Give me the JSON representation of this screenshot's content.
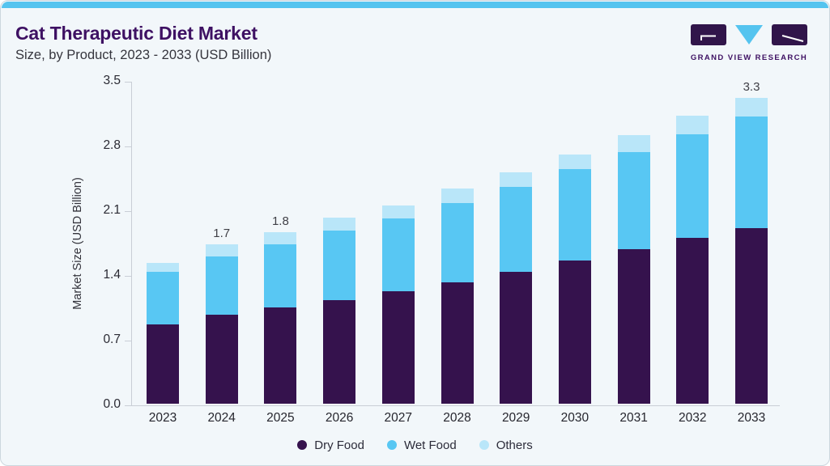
{
  "header": {
    "title": "Cat Therapeutic Diet Market",
    "subtitle": "Size, by Product, 2023 - 2033 (USD Billion)"
  },
  "logo": {
    "text": "GRAND VIEW RESEARCH"
  },
  "colors": {
    "accent_strip": "#55c4ef",
    "title": "#3e1163",
    "axis": "#c9ced6",
    "dry_food": "#35124d",
    "wet_food": "#58c7f3",
    "others": "#b9e6f9",
    "background": "#f2f7fa",
    "logo_purple": "#31154a",
    "logo_blue": "#55c4ef"
  },
  "chart_data": {
    "type": "bar",
    "stacked": true,
    "title": "Cat Therapeutic Diet Market Size, by Product, 2023 - 2033 (USD Billion)",
    "xlabel": "",
    "ylabel": "Market Size (USD Billion)",
    "ylim": [
      0,
      3.5
    ],
    "yticks": [
      "0.0",
      "0.7",
      "1.4",
      "2.1",
      "2.8",
      "3.5"
    ],
    "grid": false,
    "legend_position": "bottom",
    "categories": [
      "2023",
      "2024",
      "2025",
      "2026",
      "2027",
      "2028",
      "2029",
      "2030",
      "2031",
      "2032",
      "2033"
    ],
    "series": [
      {
        "name": "Dry Food",
        "color": "#35124d",
        "values": [
          0.86,
          0.96,
          1.04,
          1.12,
          1.22,
          1.31,
          1.43,
          1.55,
          1.67,
          1.79,
          1.9
        ]
      },
      {
        "name": "Wet Food",
        "color": "#58c7f3",
        "values": [
          0.57,
          0.63,
          0.68,
          0.75,
          0.79,
          0.86,
          0.92,
          0.99,
          1.05,
          1.12,
          1.21
        ]
      },
      {
        "name": "Others",
        "color": "#b9e6f9",
        "values": [
          0.1,
          0.13,
          0.13,
          0.14,
          0.14,
          0.16,
          0.16,
          0.16,
          0.18,
          0.2,
          0.2
        ]
      }
    ],
    "bar_total_labels": {
      "2024": "1.7",
      "2025": "1.8",
      "2033": "3.3"
    }
  }
}
